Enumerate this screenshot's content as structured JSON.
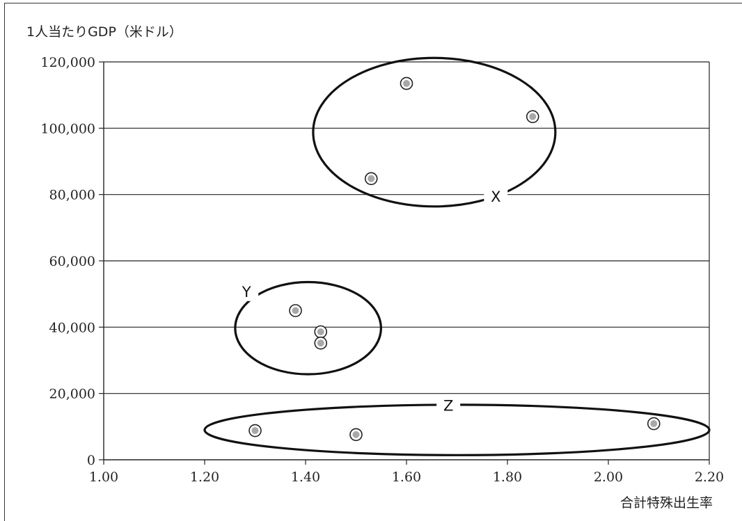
{
  "chart_data": {
    "type": "scatter",
    "title": "",
    "ylabel": "1人当たりGDP（米ドル）",
    "xlabel": "合計特殊出生率",
    "xlim": [
      1.0,
      2.2
    ],
    "ylim": [
      0,
      120000
    ],
    "grid": "horizontal",
    "x_ticks": [
      1.0,
      1.2,
      1.4,
      1.6,
      1.8,
      2.0,
      2.2
    ],
    "x_tick_labels": [
      "1.00",
      "1.20",
      "1.40",
      "1.60",
      "1.80",
      "2.00",
      "2.20"
    ],
    "y_ticks": [
      0,
      20000,
      40000,
      60000,
      80000,
      100000,
      120000
    ],
    "y_tick_labels": [
      "0",
      "20,000",
      "40,000",
      "60,000",
      "80,000",
      "100,000",
      "120,000"
    ],
    "points": [
      {
        "x": 1.6,
        "y": 113500
      },
      {
        "x": 1.85,
        "y": 103500
      },
      {
        "x": 1.53,
        "y": 84800
      },
      {
        "x": 1.38,
        "y": 45000
      },
      {
        "x": 1.43,
        "y": 38600
      },
      {
        "x": 1.43,
        "y": 35200
      },
      {
        "x": 1.3,
        "y": 8800
      },
      {
        "x": 1.5,
        "y": 7600
      },
      {
        "x": 2.09,
        "y": 10900
      }
    ],
    "groups": [
      {
        "label": "X",
        "cx": 1.655,
        "cy": 98800,
        "rx": 0.24,
        "ry": 22400,
        "label_x": 1.777,
        "label_y": 79500
      },
      {
        "label": "Y",
        "cx": 1.405,
        "cy": 39700,
        "rx": 0.1445,
        "ry": 13900,
        "label_x": 1.283,
        "label_y": 50800
      },
      {
        "label": "Z",
        "cx": 1.7,
        "cy": 9000,
        "rx": 0.5,
        "ry": 7600,
        "label_x": 1.683,
        "label_y": 16500
      }
    ]
  }
}
